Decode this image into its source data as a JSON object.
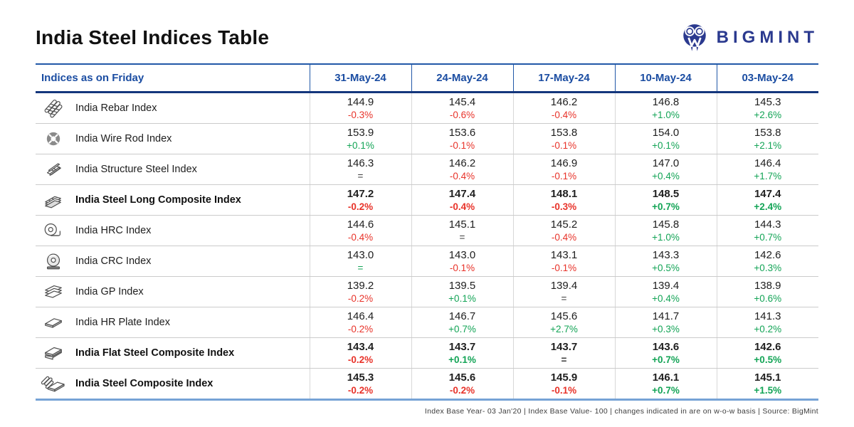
{
  "page": {
    "title": "India Steel Indices Table",
    "logo_text": "BIGMINT",
    "footer": "Index Base Year- 03 Jan'20 | Index Base Value- 100 | changes indicated in are on w-o-w basis | Source: BigMint"
  },
  "colors": {
    "header_blue": "#1b4da2",
    "header_rule_navy": "#14367c",
    "logo_navy": "#2b3a8f",
    "negative_red": "#e8332a",
    "positive_green": "#13a456",
    "bottom_border_blue": "#76a3d6"
  },
  "table": {
    "label_header": "Indices as on Friday",
    "date_headers": [
      "31-May-24",
      "24-May-24",
      "17-May-24",
      "10-May-24",
      "03-May-24"
    ],
    "rows": [
      {
        "icon": "rebar-icon",
        "label": "India Rebar Index",
        "bold": false,
        "cells": [
          {
            "v": "144.9",
            "c": "-0.3%",
            "t": "red"
          },
          {
            "v": "145.4",
            "c": "-0.6%",
            "t": "red"
          },
          {
            "v": "146.2",
            "c": "-0.4%",
            "t": "red"
          },
          {
            "v": "146.8",
            "c": "+1.0%",
            "t": "green"
          },
          {
            "v": "145.3",
            "c": "+2.6%",
            "t": "green"
          }
        ]
      },
      {
        "icon": "wire-rod-coil-icon",
        "label": "India Wire Rod Index",
        "bold": false,
        "cells": [
          {
            "v": "153.9",
            "c": "+0.1%",
            "t": "green"
          },
          {
            "v": "153.6",
            "c": "-0.1%",
            "t": "red"
          },
          {
            "v": "153.8",
            "c": "-0.1%",
            "t": "red"
          },
          {
            "v": "154.0",
            "c": "+0.1%",
            "t": "green"
          },
          {
            "v": "153.8",
            "c": "+2.1%",
            "t": "green"
          }
        ]
      },
      {
        "icon": "structure-steel-beam-icon",
        "label": "India Structure Steel Index",
        "bold": false,
        "cells": [
          {
            "v": "146.3",
            "c": "=",
            "t": "dark"
          },
          {
            "v": "146.2",
            "c": "-0.4%",
            "t": "red"
          },
          {
            "v": "146.9",
            "c": "-0.1%",
            "t": "red"
          },
          {
            "v": "147.0",
            "c": "+0.4%",
            "t": "green"
          },
          {
            "v": "146.4",
            "c": "+1.7%",
            "t": "green"
          }
        ]
      },
      {
        "icon": "long-steel-stack-icon",
        "label": "India Steel Long Composite Index",
        "bold": true,
        "cells": [
          {
            "v": "147.2",
            "c": "-0.2%",
            "t": "red"
          },
          {
            "v": "147.4",
            "c": "-0.4%",
            "t": "red"
          },
          {
            "v": "148.1",
            "c": "-0.3%",
            "t": "red"
          },
          {
            "v": "148.5",
            "c": "+0.7%",
            "t": "green"
          },
          {
            "v": "147.4",
            "c": "+2.4%",
            "t": "green"
          }
        ]
      },
      {
        "icon": "hrc-coil-icon",
        "label": "India HRC Index",
        "bold": false,
        "cells": [
          {
            "v": "144.6",
            "c": "-0.4%",
            "t": "red"
          },
          {
            "v": "145.1",
            "c": "=",
            "t": "dark"
          },
          {
            "v": "145.2",
            "c": "-0.4%",
            "t": "red"
          },
          {
            "v": "145.8",
            "c": "+1.0%",
            "t": "green"
          },
          {
            "v": "144.3",
            "c": "+0.7%",
            "t": "green"
          }
        ]
      },
      {
        "icon": "crc-coil-icon",
        "label": "India CRC Index",
        "bold": false,
        "cells": [
          {
            "v": "143.0",
            "c": "=",
            "t": "green"
          },
          {
            "v": "143.0",
            "c": "-0.1%",
            "t": "red"
          },
          {
            "v": "143.1",
            "c": "-0.1%",
            "t": "red"
          },
          {
            "v": "143.3",
            "c": "+0.5%",
            "t": "green"
          },
          {
            "v": "142.6",
            "c": "+0.3%",
            "t": "green"
          }
        ]
      },
      {
        "icon": "gp-sheets-icon",
        "label": "India GP Index",
        "bold": false,
        "cells": [
          {
            "v": "139.2",
            "c": "-0.2%",
            "t": "red"
          },
          {
            "v": "139.5",
            "c": "+0.1%",
            "t": "green"
          },
          {
            "v": "139.4",
            "c": "=",
            "t": "dark"
          },
          {
            "v": "139.4",
            "c": "+0.4%",
            "t": "green"
          },
          {
            "v": "138.9",
            "c": "+0.6%",
            "t": "green"
          }
        ]
      },
      {
        "icon": "hr-plate-icon",
        "label": "India HR Plate Index",
        "bold": false,
        "cells": [
          {
            "v": "146.4",
            "c": "-0.2%",
            "t": "red"
          },
          {
            "v": "146.7",
            "c": "+0.7%",
            "t": "green"
          },
          {
            "v": "145.6",
            "c": "+2.7%",
            "t": "green"
          },
          {
            "v": "141.7",
            "c": "+0.3%",
            "t": "green"
          },
          {
            "v": "141.3",
            "c": "+0.2%",
            "t": "green"
          }
        ]
      },
      {
        "icon": "flat-steel-stack-icon",
        "label": "India Flat Steel Composite Index",
        "bold": true,
        "cells": [
          {
            "v": "143.4",
            "c": "-0.2%",
            "t": "red"
          },
          {
            "v": "143.7",
            "c": "+0.1%",
            "t": "green"
          },
          {
            "v": "143.7",
            "c": "=",
            "t": "dark"
          },
          {
            "v": "143.6",
            "c": "+0.7%",
            "t": "green"
          },
          {
            "v": "142.6",
            "c": "+0.5%",
            "t": "green"
          }
        ]
      },
      {
        "icon": "steel-composite-icon",
        "label": "India Steel Composite Index",
        "bold": true,
        "cells": [
          {
            "v": "145.3",
            "c": "-0.2%",
            "t": "red"
          },
          {
            "v": "145.6",
            "c": "-0.2%",
            "t": "red"
          },
          {
            "v": "145.9",
            "c": "-0.1%",
            "t": "red"
          },
          {
            "v": "146.1",
            "c": "+0.7%",
            "t": "green"
          },
          {
            "v": "145.1",
            "c": "+1.5%",
            "t": "green"
          }
        ]
      }
    ]
  },
  "chart_data": {
    "type": "table",
    "title": "India Steel Indices Table",
    "columns": [
      "Indices as on Friday",
      "31-May-24",
      "24-May-24",
      "17-May-24",
      "10-May-24",
      "03-May-24"
    ],
    "rows": [
      {
        "label": "India Rebar Index",
        "values": [
          144.9,
          145.4,
          146.2,
          146.8,
          145.3
        ],
        "wow_changes": [
          "-0.3%",
          "-0.6%",
          "-0.4%",
          "+1.0%",
          "+2.6%"
        ]
      },
      {
        "label": "India Wire Rod Index",
        "values": [
          153.9,
          153.6,
          153.8,
          154.0,
          153.8
        ],
        "wow_changes": [
          "+0.1%",
          "-0.1%",
          "-0.1%",
          "+0.1%",
          "+2.1%"
        ]
      },
      {
        "label": "India Structure Steel Index",
        "values": [
          146.3,
          146.2,
          146.9,
          147.0,
          146.4
        ],
        "wow_changes": [
          "=",
          "-0.4%",
          "-0.1%",
          "+0.4%",
          "+1.7%"
        ]
      },
      {
        "label": "India Steel Long Composite Index",
        "values": [
          147.2,
          147.4,
          148.1,
          148.5,
          147.4
        ],
        "wow_changes": [
          "-0.2%",
          "-0.4%",
          "-0.3%",
          "+0.7%",
          "+2.4%"
        ]
      },
      {
        "label": "India HRC Index",
        "values": [
          144.6,
          145.1,
          145.2,
          145.8,
          144.3
        ],
        "wow_changes": [
          "-0.4%",
          "=",
          "-0.4%",
          "+1.0%",
          "+0.7%"
        ]
      },
      {
        "label": "India CRC Index",
        "values": [
          143.0,
          143.0,
          143.1,
          143.3,
          142.6
        ],
        "wow_changes": [
          "=",
          "-0.1%",
          "-0.1%",
          "+0.5%",
          "+0.3%"
        ]
      },
      {
        "label": "India GP Index",
        "values": [
          139.2,
          139.5,
          139.4,
          139.4,
          138.9
        ],
        "wow_changes": [
          "-0.2%",
          "+0.1%",
          "=",
          "+0.4%",
          "+0.6%"
        ]
      },
      {
        "label": "India HR Plate Index",
        "values": [
          146.4,
          146.7,
          145.6,
          141.7,
          141.3
        ],
        "wow_changes": [
          "-0.2%",
          "+0.7%",
          "+2.7%",
          "+0.3%",
          "+0.2%"
        ]
      },
      {
        "label": "India Flat Steel Composite Index",
        "values": [
          143.4,
          143.7,
          143.7,
          143.6,
          142.6
        ],
        "wow_changes": [
          "-0.2%",
          "+0.1%",
          "=",
          "+0.7%",
          "+0.5%"
        ]
      },
      {
        "label": "India Steel Composite Index",
        "values": [
          145.3,
          145.6,
          145.9,
          146.1,
          145.1
        ],
        "wow_changes": [
          "-0.2%",
          "-0.2%",
          "-0.1%",
          "+0.7%",
          "+1.5%"
        ]
      }
    ],
    "footnote": "Index Base Year- 03 Jan'20 | Index Base Value- 100 | changes indicated in are on w-o-w basis | Source: BigMint"
  }
}
